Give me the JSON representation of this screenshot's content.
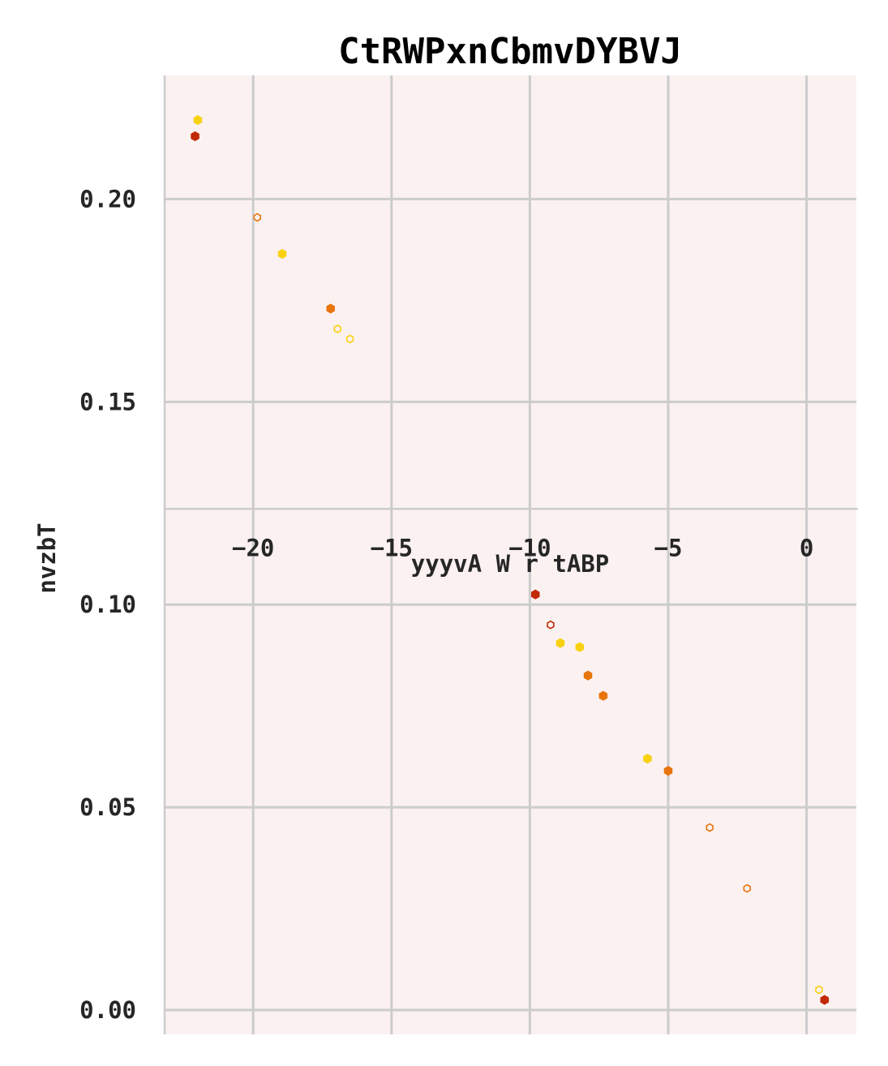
{
  "chart_data": {
    "type": "scatter",
    "title": "CtRWPxnCbmvDYBVJ",
    "xlabel": "yyyvA W r tABP",
    "ylabel": "nvzbT",
    "xlim": [
      -23.2,
      1.8
    ],
    "ylim": [
      -0.006,
      0.2305
    ],
    "xticks": [
      -20,
      -15,
      -10,
      -5,
      0
    ],
    "xtick_labels": [
      "−20",
      "−15",
      "−10",
      "−5",
      "0"
    ],
    "yticks": [
      0.0,
      0.05,
      0.1,
      0.15,
      0.2
    ],
    "ytick_labels": [
      "0.00",
      "0.05",
      "0.10",
      "0.15",
      "0.20"
    ],
    "grid": true,
    "x_axis_crosses_y_at": 0.1236,
    "background": "#fbf1f1",
    "series": [
      {
        "color": "#c02a04",
        "points": [
          {
            "x": -22.1,
            "y": 0.2155,
            "filled": true
          },
          {
            "x": -9.8,
            "y": 0.1025,
            "filled": true
          },
          {
            "x": -9.25,
            "y": 0.095,
            "filled": false
          },
          {
            "x": 0.65,
            "y": 0.0025,
            "filled": true
          }
        ]
      },
      {
        "color": "#e8750c",
        "points": [
          {
            "x": -19.85,
            "y": 0.1955,
            "filled": false
          },
          {
            "x": -17.2,
            "y": 0.173,
            "filled": true
          },
          {
            "x": -7.9,
            "y": 0.0825,
            "filled": true
          },
          {
            "x": -7.35,
            "y": 0.0775,
            "filled": true
          },
          {
            "x": -5.0,
            "y": 0.059,
            "filled": true
          },
          {
            "x": -3.5,
            "y": 0.045,
            "filled": false
          },
          {
            "x": -2.15,
            "y": 0.03,
            "filled": false
          }
        ]
      },
      {
        "color": "#f8d210",
        "points": [
          {
            "x": -22.0,
            "y": 0.2195,
            "filled": true
          },
          {
            "x": -18.95,
            "y": 0.1865,
            "filled": true
          },
          {
            "x": -16.95,
            "y": 0.168,
            "filled": false
          },
          {
            "x": -16.5,
            "y": 0.1655,
            "filled": false
          },
          {
            "x": -8.9,
            "y": 0.0905,
            "filled": true
          },
          {
            "x": -8.2,
            "y": 0.0895,
            "filled": true
          },
          {
            "x": -5.75,
            "y": 0.062,
            "filled": true
          },
          {
            "x": 0.45,
            "y": 0.005,
            "filled": false
          }
        ]
      }
    ]
  }
}
